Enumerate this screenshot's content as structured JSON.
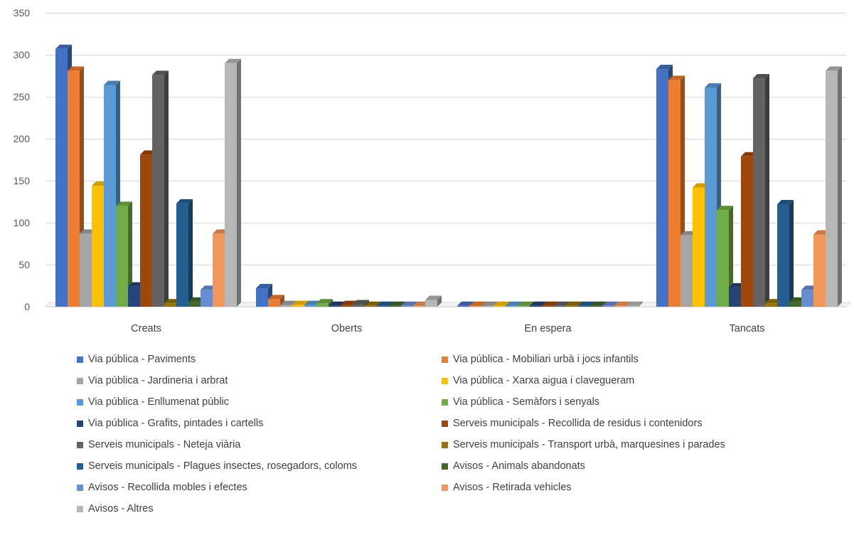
{
  "chart_data": {
    "type": "bar",
    "title": "",
    "xlabel": "",
    "ylabel": "",
    "ylim": [
      0,
      350
    ],
    "yticks": [
      0,
      50,
      100,
      150,
      200,
      250,
      300,
      350
    ],
    "grid": true,
    "legend_position": "bottom",
    "categories": [
      "Creats",
      "Oberts",
      "En espera",
      "Tancats"
    ],
    "series": [
      {
        "name": "Via pública - Paviments",
        "color": "#4472C4",
        "values": [
          307,
          22,
          0,
          283
        ]
      },
      {
        "name": "Via pública - Mobiliari urbà i jocs infantils",
        "color": "#ED7D31",
        "values": [
          281,
          9,
          0,
          270
        ]
      },
      {
        "name": "Via pública - Jardineria i arbrat",
        "color": "#A5A5A5",
        "values": [
          87,
          2,
          0,
          85
        ]
      },
      {
        "name": "Via pública - Xarxa aigua i clavegueram",
        "color": "#FFC000",
        "values": [
          144,
          2,
          0,
          142
        ]
      },
      {
        "name": "Via pública - Enllumenat públic",
        "color": "#5B9BD5",
        "values": [
          264,
          2,
          0,
          261
        ]
      },
      {
        "name": "Via pública - Semàfors i senyals",
        "color": "#70AD47",
        "values": [
          120,
          4,
          0,
          115
        ]
      },
      {
        "name": "Via pública - Grafits, pintades i cartells",
        "color": "#264478",
        "values": [
          24,
          1,
          0,
          23
        ]
      },
      {
        "name": "Serveis municipals - Recollida de residus i contenidors",
        "color": "#9E480E",
        "values": [
          181,
          2,
          0,
          179
        ]
      },
      {
        "name": "Serveis municipals - Neteja viària",
        "color": "#636363",
        "values": [
          276,
          3,
          0,
          272
        ]
      },
      {
        "name": "Serveis municipals - Transport urbà, marquesines i parades",
        "color": "#997300",
        "values": [
          4,
          0,
          0,
          4
        ]
      },
      {
        "name": "Serveis municipals - Plagues insectes, rosegadors, coloms",
        "color": "#255E91",
        "values": [
          123,
          1,
          0,
          122
        ]
      },
      {
        "name": "Avisos - Animals abandonats",
        "color": "#43682B",
        "values": [
          6,
          0,
          0,
          6
        ]
      },
      {
        "name": "Avisos - Recollida mobles i efectes",
        "color": "#698ED0",
        "values": [
          20,
          0,
          0,
          20
        ]
      },
      {
        "name": "Avisos - Retirada vehicles",
        "color": "#F1975A",
        "values": [
          87,
          1,
          0,
          86
        ]
      },
      {
        "name": "Avisos - Altres",
        "color": "#B7B7B7",
        "values": [
          290,
          8,
          0,
          281
        ]
      }
    ]
  }
}
